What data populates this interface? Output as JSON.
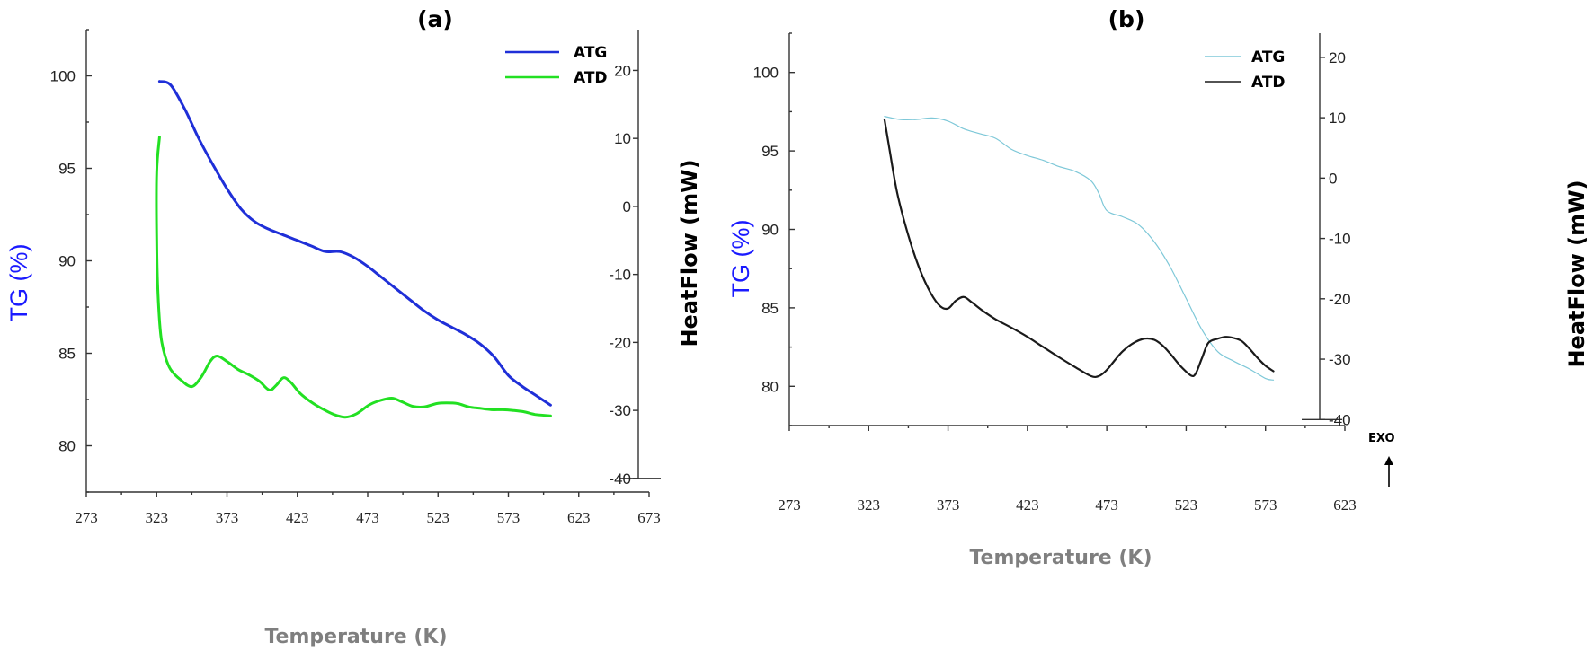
{
  "chart_data": [
    {
      "type": "line",
      "panel_label": "(a)",
      "xlabel": "Temperature (K)",
      "ylabel_left": "TG (%)",
      "ylabel_right": "HeatFlow (mW)",
      "xlim": [
        273,
        673
      ],
      "xticks": [
        273,
        323,
        373,
        423,
        473,
        523,
        573,
        623,
        673
      ],
      "ylim_left": [
        77.5,
        102.5
      ],
      "yticks_left": [
        80,
        85,
        90,
        95,
        100
      ],
      "ylim_right": [
        -42,
        26
      ],
      "yticks_right": [
        -40,
        -30,
        -20,
        -10,
        0,
        10,
        20
      ],
      "legend_position": "top-right",
      "series": [
        {
          "name": "ATG",
          "axis": "left",
          "color": "#1f2fd8",
          "x": [
            325,
            333,
            343,
            353,
            363,
            373,
            383,
            393,
            403,
            413,
            423,
            433,
            443,
            453,
            463,
            473,
            483,
            493,
            503,
            513,
            523,
            533,
            543,
            553,
            563,
            573,
            583,
            593,
            603
          ],
          "y": [
            99.7,
            99.5,
            98.2,
            96.6,
            95.2,
            93.9,
            92.8,
            92.1,
            91.7,
            91.4,
            91.1,
            90.8,
            90.5,
            90.5,
            90.2,
            89.7,
            89.1,
            88.5,
            87.9,
            87.3,
            86.8,
            86.4,
            86.0,
            85.5,
            84.8,
            83.8,
            83.2,
            82.7,
            82.2
          ]
        },
        {
          "name": "ATD",
          "axis": "right",
          "color": "#22e022",
          "x": [
            325,
            323,
            323,
            324,
            326,
            329,
            333,
            340,
            348,
            355,
            361,
            366,
            373,
            381,
            388,
            396,
            403,
            408,
            413,
            418,
            425,
            433,
            441,
            449,
            457,
            465,
            474,
            481,
            490,
            497,
            505,
            513,
            522,
            529,
            537,
            545,
            553,
            561,
            569,
            576,
            584,
            592,
            603
          ],
          "y": [
            10.2,
            5,
            -5,
            -13,
            -19,
            -22,
            -24,
            -25.5,
            -26.5,
            -25,
            -22.8,
            -22,
            -22.8,
            -24,
            -24.7,
            -25.7,
            -27,
            -26.3,
            -25.2,
            -25.8,
            -27.5,
            -28.8,
            -29.8,
            -30.6,
            -31,
            -30.5,
            -29.2,
            -28.6,
            -28.2,
            -28.7,
            -29.4,
            -29.5,
            -29,
            -28.9,
            -29,
            -29.5,
            -29.7,
            -29.9,
            -29.9,
            -30,
            -30.2,
            -30.6,
            -30.8
          ]
        }
      ]
    },
    {
      "type": "line",
      "panel_label": "(b)",
      "xlabel": "Temperature (K)",
      "ylabel_left": "TG (%)",
      "ylabel_right": "HeatFlow (mW)",
      "annotation": "EXO",
      "xlim": [
        273,
        623
      ],
      "xticks": [
        273,
        323,
        373,
        423,
        473,
        523,
        573,
        623
      ],
      "ylim_left": [
        77.5,
        102.5
      ],
      "yticks_left": [
        80,
        85,
        90,
        95,
        100
      ],
      "ylim_right": [
        -41,
        24
      ],
      "yticks_right": [
        -40,
        -30,
        -20,
        -10,
        0,
        10,
        20
      ],
      "legend_position": "top-right",
      "series": [
        {
          "name": "ATG",
          "axis": "left",
          "color": "#7ec8d8",
          "x": [
            333,
            343,
            353,
            363,
            373,
            383,
            393,
            403,
            413,
            423,
            433,
            443,
            453,
            463,
            468,
            473,
            483,
            493,
            503,
            513,
            523,
            533,
            543,
            553,
            563,
            573,
            578
          ],
          "y": [
            97.2,
            97.0,
            97.0,
            97.1,
            96.9,
            96.4,
            96.1,
            95.8,
            95.1,
            94.7,
            94.4,
            94.0,
            93.7,
            93.1,
            92.3,
            91.2,
            90.8,
            90.3,
            89.2,
            87.6,
            85.6,
            83.6,
            82.2,
            81.6,
            81.1,
            80.5,
            80.4
          ]
        },
        {
          "name": "ATD",
          "axis": "right",
          "color": "#1a1a1a",
          "x": [
            333,
            336,
            341,
            348,
            355,
            362,
            368,
            373,
            378,
            383,
            388,
            395,
            403,
            413,
            423,
            433,
            443,
            453,
            463,
            468,
            473,
            478,
            483,
            490,
            497,
            503,
            508,
            513,
            520,
            526,
            529,
            533,
            537,
            543,
            548,
            553,
            558,
            563,
            568,
            573,
            578
          ],
          "y": [
            9.7,
            5,
            -2.5,
            -9.5,
            -15,
            -19,
            -21.2,
            -21.6,
            -20.3,
            -19.7,
            -20.6,
            -22,
            -23.4,
            -24.8,
            -26.3,
            -28,
            -29.7,
            -31.3,
            -32.8,
            -32.8,
            -31.8,
            -30.2,
            -28.7,
            -27.3,
            -26.6,
            -26.8,
            -27.7,
            -29.1,
            -31.3,
            -32.7,
            -32.4,
            -29.8,
            -27.3,
            -26.6,
            -26.3,
            -26.5,
            -27,
            -28.3,
            -29.8,
            -31.1,
            -32
          ]
        }
      ]
    }
  ]
}
